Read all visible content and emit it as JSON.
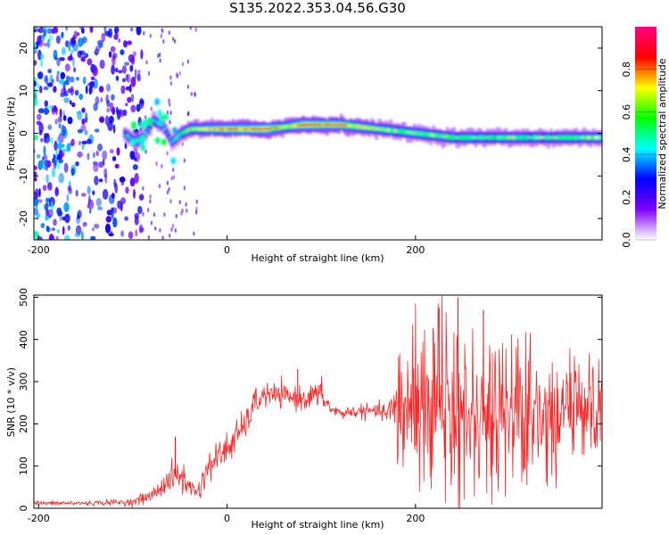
{
  "title": "S135.2022.353.04.56.G30",
  "chart_data": [
    {
      "type": "heatmap",
      "xlabel": "Height of straight line (km)",
      "ylabel": "Frequency (Hz)",
      "xlim": [
        -205,
        398
      ],
      "ylim": [
        -25,
        25
      ],
      "x_ticks": [
        -200,
        0,
        200
      ],
      "y_ticks": [
        -20,
        -10,
        0,
        10,
        20
      ],
      "colorbar": {
        "label": "Normalized spectral amplitude",
        "range": [
          0,
          1
        ],
        "ticks": [
          "0.0",
          "0.2",
          "0.4",
          "0.6",
          "0.8"
        ],
        "colors": [
          "#ffffff",
          "#7f00ff",
          "#0000ff",
          "#00ffff",
          "#00ff00",
          "#ffff00",
          "#ff0000",
          "#ff0080"
        ]
      },
      "ridge": {
        "x": [
          -200,
          -150,
          -110,
          -100,
          -90,
          -80,
          -70,
          -60,
          -50,
          -40,
          -20,
          0,
          40,
          60,
          80,
          120,
          160,
          200,
          240,
          300,
          360,
          398
        ],
        "freq": [
          0,
          0,
          0,
          -2,
          -1,
          3,
          2,
          -2,
          0,
          1,
          1,
          1,
          1,
          1.5,
          2,
          2,
          1,
          0,
          -1,
          -1,
          -1,
          -1
        ],
        "amplitude": [
          0.15,
          0.2,
          0.35,
          0.55,
          0.5,
          0.45,
          0.45,
          0.4,
          0.55,
          0.65,
          0.75,
          0.8,
          0.85,
          0.7,
          0.85,
          0.8,
          0.65,
          0.6,
          0.6,
          0.6,
          0.6,
          0.6
        ]
      }
    },
    {
      "type": "line",
      "xlabel": "Height of straight line (km)",
      "ylabel": "SNR (10 * v/v)",
      "xlim": [
        -205,
        398
      ],
      "ylim": [
        0,
        505
      ],
      "x_ticks": [
        -200,
        0,
        200
      ],
      "y_ticks": [
        0,
        100,
        200,
        300,
        400,
        500
      ],
      "color": "#ff0000",
      "envelope": {
        "x": [
          -205,
          -150,
          -100,
          -80,
          -60,
          -50,
          -40,
          -30,
          -20,
          0,
          20,
          30,
          40,
          60,
          80,
          100,
          110,
          120,
          140,
          160,
          170,
          180,
          190,
          200,
          220,
          240,
          260,
          280,
          300,
          320,
          340,
          360,
          380,
          398
        ],
        "mean": [
          12,
          12,
          15,
          30,
          70,
          80,
          50,
          40,
          100,
          140,
          200,
          250,
          270,
          265,
          260,
          270,
          235,
          225,
          230,
          230,
          225,
          235,
          240,
          250,
          240,
          235,
          230,
          230,
          230,
          230,
          225,
          225,
          225,
          240
        ],
        "amplitude": [
          5,
          5,
          8,
          15,
          30,
          45,
          20,
          25,
          30,
          40,
          30,
          35,
          25,
          25,
          25,
          30,
          15,
          12,
          15,
          15,
          20,
          80,
          120,
          150,
          160,
          170,
          150,
          140,
          130,
          120,
          110,
          100,
          90,
          80
        ],
        "peaks": [
          {
            "x": -55,
            "y": 170
          },
          {
            "x": 75,
            "y": 330
          },
          {
            "x": 245,
            "y": 500
          },
          {
            "x": 225,
            "y": 475
          },
          {
            "x": 272,
            "y": 470
          }
        ]
      }
    }
  ]
}
